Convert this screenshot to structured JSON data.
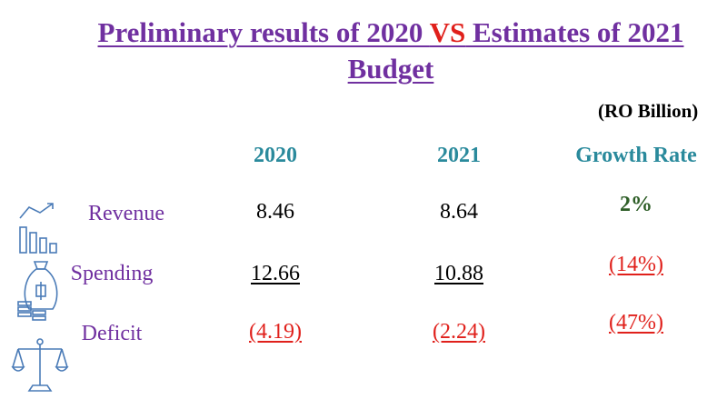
{
  "title": {
    "line1_a": "Preliminary results of 2020 ",
    "line1_vs": "VS",
    "line1_b": " Estimates of 2021",
    "line2": "Budget"
  },
  "unit_label": "(RO Billion)",
  "columns": [
    "2020",
    "2021",
    "Growth Rate"
  ],
  "rows": [
    {
      "label": "Revenue",
      "icon": "bar-chart-trend-icon",
      "v2020": "8.46",
      "v2021": "8.64",
      "growth": "2%"
    },
    {
      "label": "Spending",
      "icon": "money-bag-icon",
      "v2020": "12.66",
      "v2021": "10.88",
      "growth": "(14%)"
    },
    {
      "label": "Deficit",
      "icon": "balance-scale-icon",
      "v2020": "(4.19)",
      "v2021": "(2.24)",
      "growth": "(47%)"
    }
  ],
  "colors": {
    "title": "#7030a0",
    "vs": "#e0201b",
    "header": "#2a8a9c",
    "negative": "#e0201b",
    "positive": "#2e5e27",
    "icon": "#4a7bb7"
  }
}
